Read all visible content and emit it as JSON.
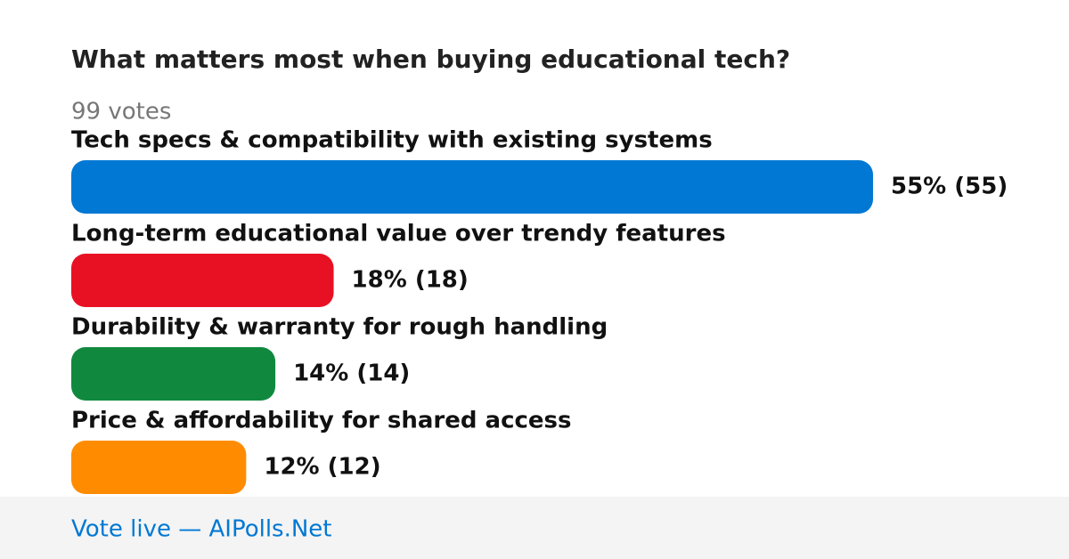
{
  "chart_data": {
    "type": "bar",
    "orientation": "horizontal",
    "title": "What matters most when buying educational tech?",
    "subtitle": "99 votes",
    "categories": [
      "Tech specs & compatibility with existing systems",
      "Long-term educational value over trendy features",
      "Durability & warranty for rough handling",
      "Price & affordability for shared access"
    ],
    "values": [
      55,
      18,
      14,
      12
    ],
    "value_labels": [
      "55% (55)",
      "18% (18)",
      "14% (14)",
      "12% (12)"
    ],
    "colors": [
      "#0078d4",
      "#e81123",
      "#10893e",
      "#ff8c00"
    ]
  },
  "footer": "Vote live — AIPolls.Net"
}
